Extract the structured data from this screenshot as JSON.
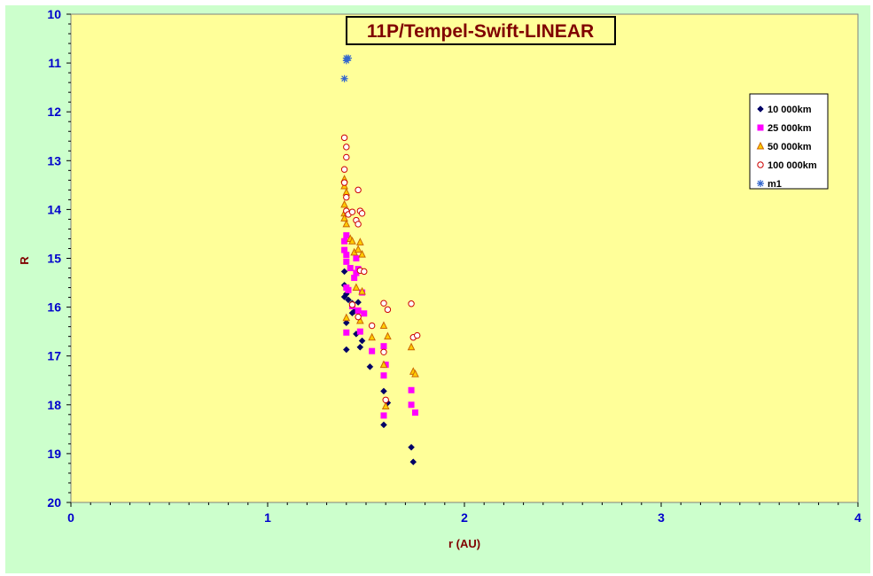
{
  "chart_data": {
    "type": "scatter",
    "title": "11P/Tempel-Swift-LINEAR",
    "xlabel": "r (AU)",
    "ylabel": "R",
    "xlim": [
      0,
      4
    ],
    "ylim": [
      10,
      20
    ],
    "y_inverted": true,
    "x_ticks": [
      "0",
      "1",
      "2",
      "3",
      "4"
    ],
    "y_ticks": [
      "10",
      "11",
      "12",
      "13",
      "14",
      "15",
      "16",
      "17",
      "18",
      "19",
      "20"
    ],
    "grid": false,
    "legend_position": "top-right",
    "colors": {
      "plot_background": "#ffff99",
      "chart_background": "#ccffcc",
      "title_text": "#800000",
      "tick_text": "#0000cc"
    },
    "series": [
      {
        "name": "10 000km",
        "marker": "diamond",
        "color": "#000066",
        "points": [
          [
            1.39,
            15.27
          ],
          [
            1.39,
            15.55
          ],
          [
            1.4,
            15.73
          ],
          [
            1.39,
            15.79
          ],
          [
            1.41,
            15.85
          ],
          [
            1.43,
            15.92
          ],
          [
            1.43,
            16.12
          ],
          [
            1.44,
            16.09
          ],
          [
            1.46,
            15.9
          ],
          [
            1.46,
            16.1
          ],
          [
            1.4,
            16.32
          ],
          [
            1.4,
            16.87
          ],
          [
            1.45,
            16.55
          ],
          [
            1.48,
            16.69
          ],
          [
            1.47,
            16.82
          ],
          [
            1.52,
            17.22
          ],
          [
            1.59,
            17.72
          ],
          [
            1.61,
            17.96
          ],
          [
            1.59,
            18.41
          ],
          [
            1.73,
            18.87
          ],
          [
            1.74,
            19.17
          ]
        ]
      },
      {
        "name": "25 000km",
        "marker": "square",
        "color": "#ff00ff",
        "points": [
          [
            1.4,
            14.53
          ],
          [
            1.39,
            14.65
          ],
          [
            1.39,
            14.83
          ],
          [
            1.4,
            14.93
          ],
          [
            1.4,
            15.07
          ],
          [
            1.42,
            15.2
          ],
          [
            1.45,
            15.0
          ],
          [
            1.46,
            15.22
          ],
          [
            1.45,
            15.3
          ],
          [
            1.44,
            15.4
          ],
          [
            1.4,
            15.6
          ],
          [
            1.41,
            15.65
          ],
          [
            1.43,
            15.98
          ],
          [
            1.46,
            16.07
          ],
          [
            1.49,
            16.13
          ],
          [
            1.48,
            15.7
          ],
          [
            1.4,
            16.52
          ],
          [
            1.47,
            16.5
          ],
          [
            1.53,
            16.9
          ],
          [
            1.59,
            16.8
          ],
          [
            1.59,
            17.4
          ],
          [
            1.6,
            17.18
          ],
          [
            1.59,
            18.22
          ],
          [
            1.73,
            17.7
          ],
          [
            1.73,
            18.0
          ],
          [
            1.75,
            18.16
          ]
        ]
      },
      {
        "name": "50 000km",
        "marker": "triangle",
        "color": "#cc6600",
        "fill": "#ffcc00",
        "points": [
          [
            1.39,
            13.38
          ],
          [
            1.39,
            13.52
          ],
          [
            1.4,
            13.65
          ],
          [
            1.39,
            13.9
          ],
          [
            1.39,
            14.08
          ],
          [
            1.39,
            14.18
          ],
          [
            1.4,
            14.3
          ],
          [
            1.42,
            14.6
          ],
          [
            1.43,
            14.65
          ],
          [
            1.44,
            14.88
          ],
          [
            1.46,
            14.82
          ],
          [
            1.47,
            14.67
          ],
          [
            1.48,
            14.92
          ],
          [
            1.45,
            15.6
          ],
          [
            1.48,
            15.68
          ],
          [
            1.4,
            16.22
          ],
          [
            1.47,
            16.28
          ],
          [
            1.53,
            16.62
          ],
          [
            1.59,
            16.38
          ],
          [
            1.61,
            16.6
          ],
          [
            1.59,
            17.18
          ],
          [
            1.6,
            18.03
          ],
          [
            1.73,
            16.82
          ],
          [
            1.74,
            17.32
          ],
          [
            1.75,
            17.37
          ]
        ]
      },
      {
        "name": "100 000km",
        "marker": "circle",
        "color": "#cc0000",
        "points": [
          [
            1.39,
            12.53
          ],
          [
            1.4,
            12.72
          ],
          [
            1.4,
            12.93
          ],
          [
            1.39,
            13.18
          ],
          [
            1.39,
            13.45
          ],
          [
            1.4,
            13.75
          ],
          [
            1.4,
            14.03
          ],
          [
            1.41,
            14.1
          ],
          [
            1.43,
            14.05
          ],
          [
            1.45,
            14.22
          ],
          [
            1.46,
            14.3
          ],
          [
            1.47,
            14.03
          ],
          [
            1.48,
            14.08
          ],
          [
            1.46,
            13.6
          ],
          [
            1.47,
            15.25
          ],
          [
            1.49,
            15.27
          ],
          [
            1.43,
            15.95
          ],
          [
            1.46,
            16.2
          ],
          [
            1.53,
            16.38
          ],
          [
            1.59,
            15.92
          ],
          [
            1.61,
            16.05
          ],
          [
            1.59,
            16.92
          ],
          [
            1.6,
            17.9
          ],
          [
            1.73,
            15.93
          ],
          [
            1.74,
            16.62
          ],
          [
            1.76,
            16.58
          ]
        ]
      },
      {
        "name": "m1",
        "marker": "asterisk",
        "color": "#3366cc",
        "points": [
          [
            1.4,
            10.9
          ],
          [
            1.41,
            10.9
          ],
          [
            1.4,
            10.95
          ],
          [
            1.39,
            11.32
          ]
        ]
      }
    ]
  }
}
